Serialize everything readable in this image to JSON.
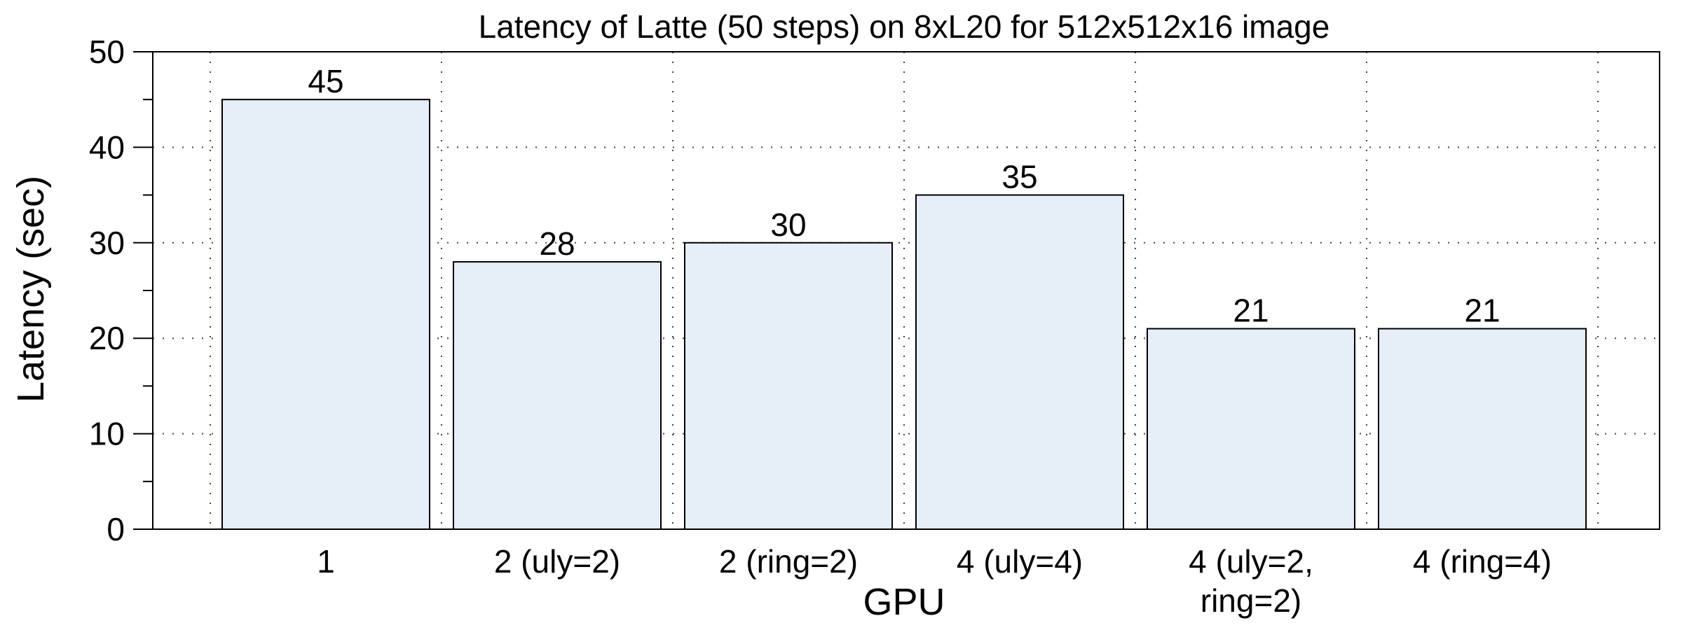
{
  "chart_data": {
    "type": "bar",
    "title": "Latency of Latte (50 steps) on 8xL20 for 512x512x16 image",
    "xlabel": "GPU",
    "ylabel": "Latency (sec)",
    "categories": [
      "1",
      "2 (uly=2)",
      "2 (ring=2)",
      "4 (uly=4)",
      "4 (uly=2,\nring=2)",
      "4 (ring=4)"
    ],
    "values": [
      45,
      28,
      30,
      35,
      21,
      21
    ],
    "ylim": [
      0,
      50
    ],
    "yticks": [
      0,
      10,
      20,
      30,
      40,
      50
    ],
    "grid": true,
    "bar_color": "#e6eef8",
    "edge_color": "#000000"
  }
}
